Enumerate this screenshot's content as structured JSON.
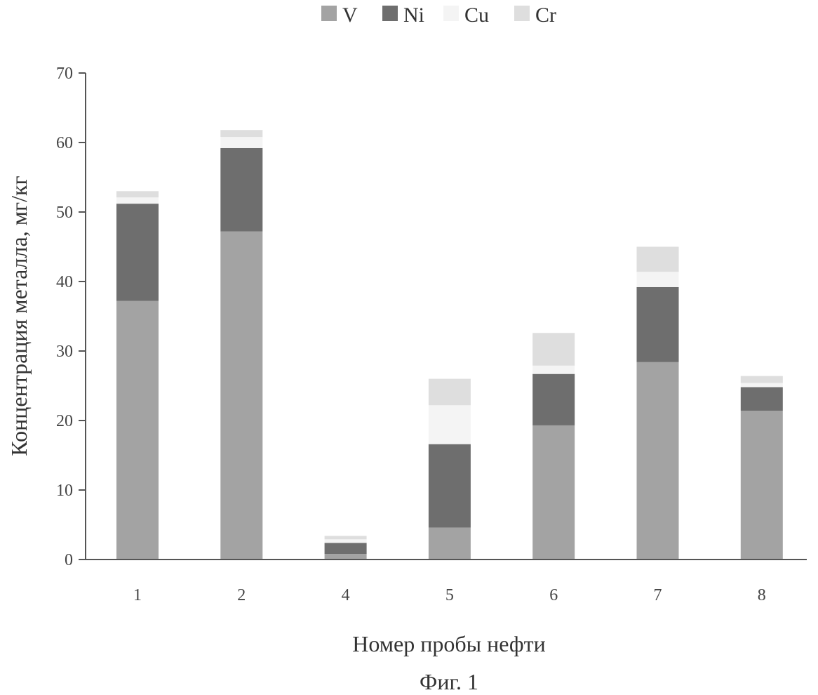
{
  "chart_data": {
    "type": "bar",
    "stacked": true,
    "categories": [
      "1",
      "2",
      "4",
      "5",
      "6",
      "7",
      "8"
    ],
    "series": [
      {
        "name": "V",
        "color": "#a3a3a3",
        "values": [
          37.2,
          47.2,
          0.8,
          4.6,
          19.3,
          28.4,
          21.4
        ]
      },
      {
        "name": "Ni",
        "color": "#6e6e6e",
        "values": [
          14.0,
          12.0,
          1.6,
          12.0,
          7.4,
          10.8,
          3.4
        ]
      },
      {
        "name": "Cu",
        "color": "#f4f4f4",
        "values": [
          0.9,
          1.6,
          0.5,
          5.6,
          1.2,
          2.2,
          0.6
        ]
      },
      {
        "name": "Cr",
        "color": "#dedede",
        "values": [
          0.9,
          1.0,
          0.5,
          3.8,
          4.7,
          3.6,
          1.0
        ]
      }
    ],
    "ylim": [
      0,
      70
    ],
    "yticks": [
      0,
      10,
      20,
      30,
      40,
      50,
      60,
      70
    ],
    "ylabel": "Концентрация металла, мг/кг",
    "xlabel": "Номер пробы нефти",
    "legend_position": "top",
    "grid": false
  },
  "caption": "Фиг. 1"
}
